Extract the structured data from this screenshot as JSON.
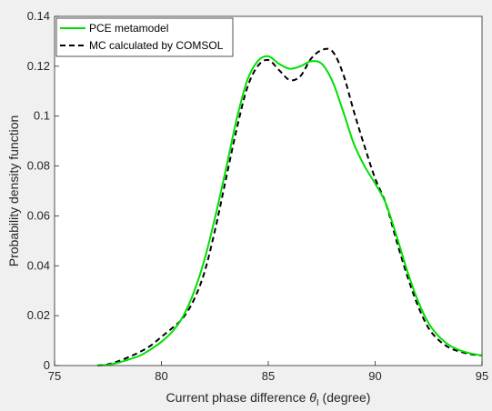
{
  "chart_data": {
    "type": "line",
    "title": "",
    "xlabel": "Current phase difference",
    "xlabel_symbol": "θ",
    "xlabel_subscript": "I",
    "xlabel_suffix": "(degree)",
    "ylabel": "Probability density function",
    "xlim": [
      75,
      95
    ],
    "ylim": [
      0,
      0.14
    ],
    "x_ticks": [
      75,
      80,
      85,
      90,
      95
    ],
    "y_ticks": [
      0,
      0.02,
      0.04,
      0.06,
      0.08,
      0.1,
      0.12,
      0.14
    ],
    "x_tick_labels": [
      "75",
      "80",
      "85",
      "90",
      "95"
    ],
    "y_tick_labels": [
      "0",
      "0.02",
      "0.04",
      "0.06",
      "0.08",
      "0.1",
      "0.12",
      "0.14"
    ],
    "grid": false,
    "legend_position": "top-left",
    "series": [
      {
        "name": "PCE metamodel",
        "color": "#00e000",
        "style": "solid",
        "x": [
          77.0,
          77.5,
          78.0,
          78.5,
          79.0,
          79.5,
          80.0,
          80.5,
          81.0,
          81.5,
          82.0,
          82.5,
          83.0,
          83.5,
          84.0,
          84.5,
          85.0,
          85.5,
          86.0,
          86.5,
          87.0,
          87.5,
          88.0,
          88.5,
          89.0,
          89.5,
          90.0,
          90.5,
          91.0,
          91.5,
          92.0,
          92.5,
          93.0,
          93.5,
          94.0,
          94.5,
          95.0
        ],
        "y": [
          0.0,
          0.0003,
          0.0012,
          0.0025,
          0.004,
          0.0065,
          0.0095,
          0.0135,
          0.0195,
          0.029,
          0.042,
          0.059,
          0.078,
          0.098,
          0.114,
          0.122,
          0.124,
          0.121,
          0.119,
          0.12,
          0.122,
          0.121,
          0.114,
          0.102,
          0.089,
          0.08,
          0.073,
          0.065,
          0.052,
          0.038,
          0.026,
          0.017,
          0.0115,
          0.008,
          0.006,
          0.0048,
          0.004
        ]
      },
      {
        "name": "MC calculated by COMSOL",
        "color": "#000000",
        "style": "dashed",
        "x": [
          77.0,
          77.5,
          78.0,
          78.5,
          79.0,
          79.5,
          80.0,
          80.5,
          81.0,
          81.5,
          82.0,
          82.5,
          83.0,
          83.5,
          84.0,
          84.5,
          85.0,
          85.5,
          86.0,
          86.5,
          87.0,
          87.5,
          88.0,
          88.5,
          89.0,
          89.5,
          90.0,
          90.5,
          91.0,
          91.5,
          92.0,
          92.5,
          93.0,
          93.5,
          94.0,
          94.5,
          95.0
        ],
        "y": [
          0.0,
          0.0005,
          0.0018,
          0.0035,
          0.0055,
          0.008,
          0.0115,
          0.015,
          0.019,
          0.026,
          0.037,
          0.054,
          0.074,
          0.094,
          0.111,
          0.12,
          0.1225,
          0.1185,
          0.1145,
          0.116,
          0.123,
          0.1265,
          0.126,
          0.117,
          0.102,
          0.088,
          0.075,
          0.065,
          0.05,
          0.036,
          0.024,
          0.015,
          0.01,
          0.007,
          0.0055,
          0.0045,
          0.004
        ]
      }
    ]
  }
}
